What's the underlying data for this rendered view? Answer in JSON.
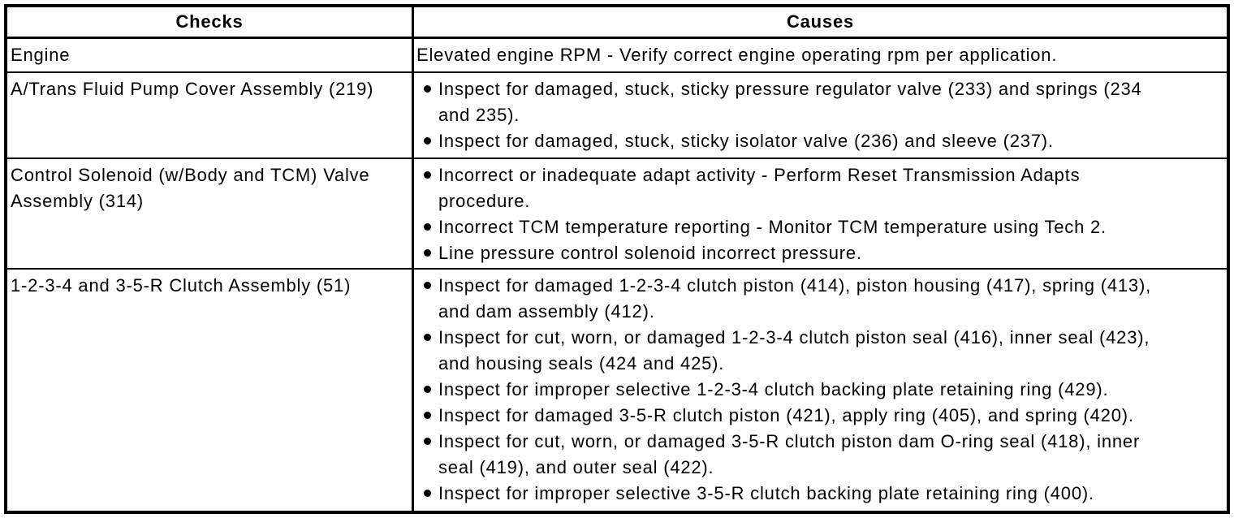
{
  "colors": {
    "background": "#ffffff",
    "text": "#000000",
    "border": "#000000"
  },
  "table": {
    "headers": [
      "Checks",
      "Causes"
    ],
    "rows": [
      {
        "check": "Engine",
        "causes_text": "Elevated engine RPM - Verify correct engine operating rpm per application.",
        "causes_bullets": []
      },
      {
        "check": "A/Trans Fluid Pump Cover Assembly (219)",
        "causes_text": "",
        "causes_bullets": [
          "Inspect for damaged, stuck, sticky pressure regulator valve (233) and springs (234 and 235).",
          "Inspect for damaged, stuck, sticky isolator valve (236) and sleeve (237)."
        ]
      },
      {
        "check": "Control Solenoid (w/Body and TCM) Valve Assembly (314)",
        "causes_text": "",
        "causes_bullets": [
          "Incorrect or inadequate adapt activity - Perform Reset Transmission Adapts procedure.",
          "Incorrect TCM temperature reporting - Monitor TCM temperature using Tech 2.",
          "Line pressure control solenoid incorrect pressure."
        ]
      },
      {
        "check": "1-2-3-4 and 3-5-R Clutch Assembly (51)",
        "causes_text": "",
        "causes_bullets": [
          "Inspect for damaged 1-2-3-4 clutch piston (414), piston housing (417), spring (413), and dam assembly (412).",
          "Inspect for cut, worn, or damaged 1-2-3-4 clutch piston seal (416), inner seal (423), and housing seals (424 and 425).",
          "Inspect for improper selective 1-2-3-4 clutch backing plate retaining ring (429).",
          "Inspect for damaged 3-5-R clutch piston (421), apply ring (405), and spring (420).",
          "Inspect for cut, worn, or damaged 3-5-R clutch piston dam O-ring seal (418), inner seal (419), and outer seal (422).",
          "Inspect for improper selective 3-5-R clutch backing plate retaining ring (400)."
        ]
      }
    ]
  }
}
